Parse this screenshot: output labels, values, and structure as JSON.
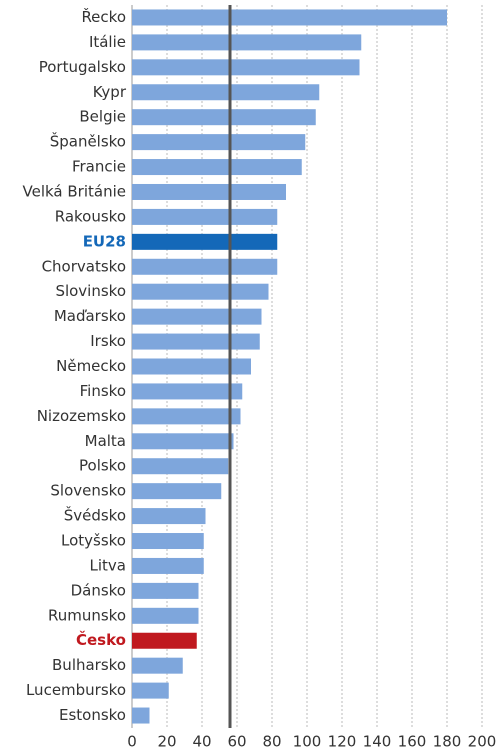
{
  "chart_data": {
    "type": "barh",
    "categories": [
      "Řecko",
      "Itálie",
      "Portugalsko",
      "Kypr",
      "Belgie",
      "Španělsko",
      "Francie",
      "Velká Británie",
      "Rakousko",
      "EU28",
      "Chorvatsko",
      "Slovinsko",
      "Maďarsko",
      "Irsko",
      "Německo",
      "Finsko",
      "Nizozemsko",
      "Malta",
      "Polsko",
      "Slovensko",
      "Švédsko",
      "Lotyšsko",
      "Litva",
      "Dánsko",
      "Rumunsko",
      "Česko",
      "Bulharsko",
      "Lucembursko",
      "Estonsko"
    ],
    "values": [
      180,
      131,
      130,
      107,
      105,
      99,
      97,
      88,
      83,
      83,
      83,
      78,
      74,
      73,
      68,
      63,
      62,
      58,
      55,
      51,
      42,
      41,
      41,
      38,
      38,
      37,
      29,
      21,
      10
    ],
    "color": "#7ea6dc",
    "bar_colors": [
      "#7ea6dc",
      "#7ea6dc",
      "#7ea6dc",
      "#7ea6dc",
      "#7ea6dc",
      "#7ea6dc",
      "#7ea6dc",
      "#7ea6dc",
      "#7ea6dc",
      "#1468b8",
      "#7ea6dc",
      "#7ea6dc",
      "#7ea6dc",
      "#7ea6dc",
      "#7ea6dc",
      "#7ea6dc",
      "#7ea6dc",
      "#7ea6dc",
      "#7ea6dc",
      "#7ea6dc",
      "#7ea6dc",
      "#7ea6dc",
      "#7ea6dc",
      "#7ea6dc",
      "#7ea6dc",
      "#c0191f",
      "#7ea6dc",
      "#7ea6dc",
      "#7ea6dc"
    ],
    "xlim": [
      0,
      200
    ],
    "xticks": [
      0,
      20,
      40,
      60,
      80,
      100,
      120,
      140,
      160,
      180,
      200
    ],
    "reference_line": 56,
    "grid": true
  }
}
